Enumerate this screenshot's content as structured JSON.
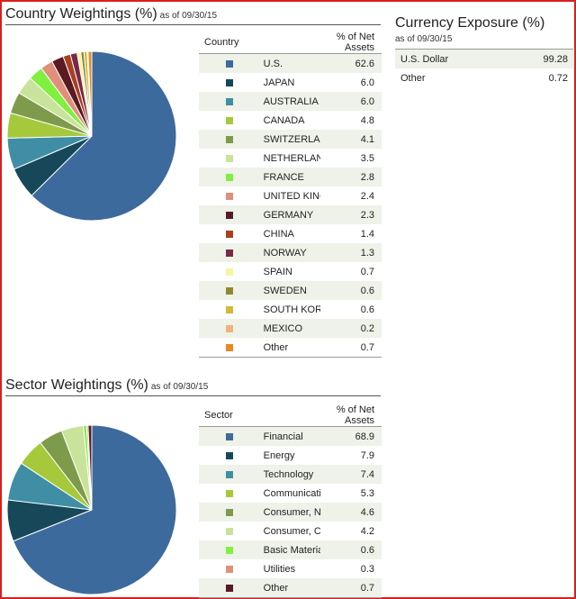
{
  "country": {
    "title": "Country Weightings (%)",
    "asof": "as of 09/30/15",
    "col_label": "Country",
    "col_value": "% of Net Assets"
  },
  "sector": {
    "title": "Sector Weightings (%)",
    "asof": "as of 09/30/15",
    "col_label": "Sector",
    "col_value": "% of Net Assets"
  },
  "currency": {
    "title": "Currency Exposure (%)",
    "asof": "as of 09/30/15",
    "rows": [
      {
        "label": "U.S. Dollar",
        "value": "99.28"
      },
      {
        "label": "Other",
        "value": "0.72"
      }
    ]
  },
  "chart_data": [
    {
      "type": "pie",
      "title": "Country Weightings (%)",
      "categories": [
        "U.S.",
        "JAPAN",
        "AUSTRALIA",
        "CANADA",
        "SWITZERLAND",
        "NETHERLANDS",
        "FRANCE",
        "UNITED KINGDOM",
        "GERMANY",
        "CHINA",
        "NORWAY",
        "SPAIN",
        "SWEDEN",
        "SOUTH KOREA",
        "MEXICO",
        "Other"
      ],
      "values": [
        62.6,
        6.0,
        6.0,
        4.8,
        4.1,
        3.5,
        2.8,
        2.4,
        2.3,
        1.4,
        1.3,
        0.7,
        0.6,
        0.6,
        0.2,
        0.7
      ],
      "labels": [
        "62.6",
        "6.0",
        "6.0",
        "4.8",
        "4.1",
        "3.5",
        "2.8",
        "2.4",
        "2.3",
        "1.4",
        "1.3",
        "0.7",
        "0.6",
        "0.6",
        "0.2",
        "0.7"
      ],
      "colors": [
        "#3d6a9c",
        "#17485a",
        "#3f8ea5",
        "#a6c93b",
        "#7e9a4b",
        "#c9e49a",
        "#80f040",
        "#e0907a",
        "#5a1a24",
        "#a8401e",
        "#7a2848",
        "#f6f4a0",
        "#8e8a30",
        "#d4b838",
        "#f0b080",
        "#e88a20"
      ],
      "legend": "right"
    },
    {
      "type": "pie",
      "title": "Sector Weightings (%)",
      "categories": [
        "Financial",
        "Energy",
        "Technology",
        "Communications",
        "Consumer, Non-cyclical",
        "Consumer, Cyclical",
        "Basic Materials",
        "Utilities",
        "Other"
      ],
      "values": [
        68.9,
        7.9,
        7.4,
        5.3,
        4.6,
        4.2,
        0.6,
        0.3,
        0.7
      ],
      "labels": [
        "68.9",
        "7.9",
        "7.4",
        "5.3",
        "4.6",
        "4.2",
        "0.6",
        "0.3",
        "0.7"
      ],
      "colors": [
        "#3d6a9c",
        "#17485a",
        "#3f8ea5",
        "#a6c93b",
        "#7e9a4b",
        "#c9e49a",
        "#80f040",
        "#e0907a",
        "#5a1a24"
      ],
      "legend": "right"
    }
  ]
}
